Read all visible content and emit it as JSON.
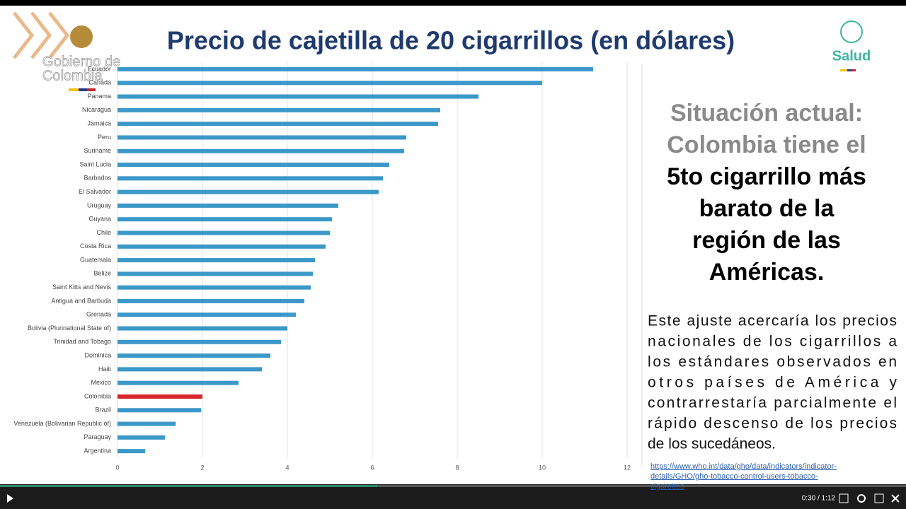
{
  "header": {
    "title": "Precio de cajetilla de 20 cigarrillos (en dólares)",
    "logo_text": [
      "Gobierno de",
      "Colombia"
    ],
    "ministry": "Salud"
  },
  "chart_data": {
    "type": "bar",
    "orientation": "horizontal",
    "categories": [
      "Ecuador",
      "Canada",
      "Panama",
      "Nicaragua",
      "Jamaica",
      "Peru",
      "Suriname",
      "Saint Lucia",
      "Barbados",
      "El Salvador",
      "Uruguay",
      "Guyana",
      "Chile",
      "Costa Rica",
      "Guatemala",
      "Belize",
      "Saint Kitts and Nevis",
      "Antigua and Barbuda",
      "Grenada",
      "Bolivia (Plurinational State of)",
      "Trinidad and Tobago",
      "Dominica",
      "Haiti",
      "Mexico",
      "Colombia",
      "Brazil",
      "Venezuela (Bolivarian Republic of)",
      "Paraguay",
      "Argentina"
    ],
    "values": [
      11.2,
      10.0,
      8.5,
      7.6,
      7.55,
      6.8,
      6.75,
      6.4,
      6.25,
      6.15,
      5.2,
      5.05,
      5.0,
      4.9,
      4.65,
      4.6,
      4.55,
      4.4,
      4.2,
      4.0,
      3.85,
      3.6,
      3.4,
      2.85,
      2.0,
      1.97,
      1.37,
      1.12,
      0.65
    ],
    "colors": [
      "#3b98c8",
      "#3b98c8",
      "#3b98c8",
      "#3b98c8",
      "#3b98c8",
      "#3b98c8",
      "#3b98c8",
      "#3b98c8",
      "#3b98c8",
      "#3b98c8",
      "#3b98c8",
      "#3b98c8",
      "#3b98c8",
      "#3b98c8",
      "#3b98c8",
      "#3b98c8",
      "#3b98c8",
      "#3b98c8",
      "#3b98c8",
      "#3b98c8",
      "#3b98c8",
      "#3b98c8",
      "#3b98c8",
      "#3b98c8",
      "#d7262b",
      "#3b98c8",
      "#3b98c8",
      "#3b98c8",
      "#3b98c8"
    ],
    "xlim": [
      0,
      12
    ],
    "xticks": [
      0,
      2,
      4,
      6,
      8,
      10,
      12
    ],
    "grid": true
  },
  "side": {
    "headline_gray": [
      "Situación actual:",
      "Colombia tiene el"
    ],
    "headline_bold": [
      "5to cigarrillo más",
      "barato de la",
      "región de las",
      "Américas."
    ],
    "paragraph": [
      "Este ajuste acercaría los precios",
      "nacionales de los cigarrillos a",
      "los estándares observados en",
      "otros países de América y",
      "contrarrestaría parcialmente el",
      "rápido descenso de los precios",
      "de los sucedáneos."
    ],
    "link": [
      "https://www.who.int/data/gho/data/indicators/indicator-",
      "details/GHO/gho-tobacco-control-users-tobacco-",
      "cigarettes"
    ]
  },
  "player": {
    "time": "0:30 / 1:12"
  }
}
